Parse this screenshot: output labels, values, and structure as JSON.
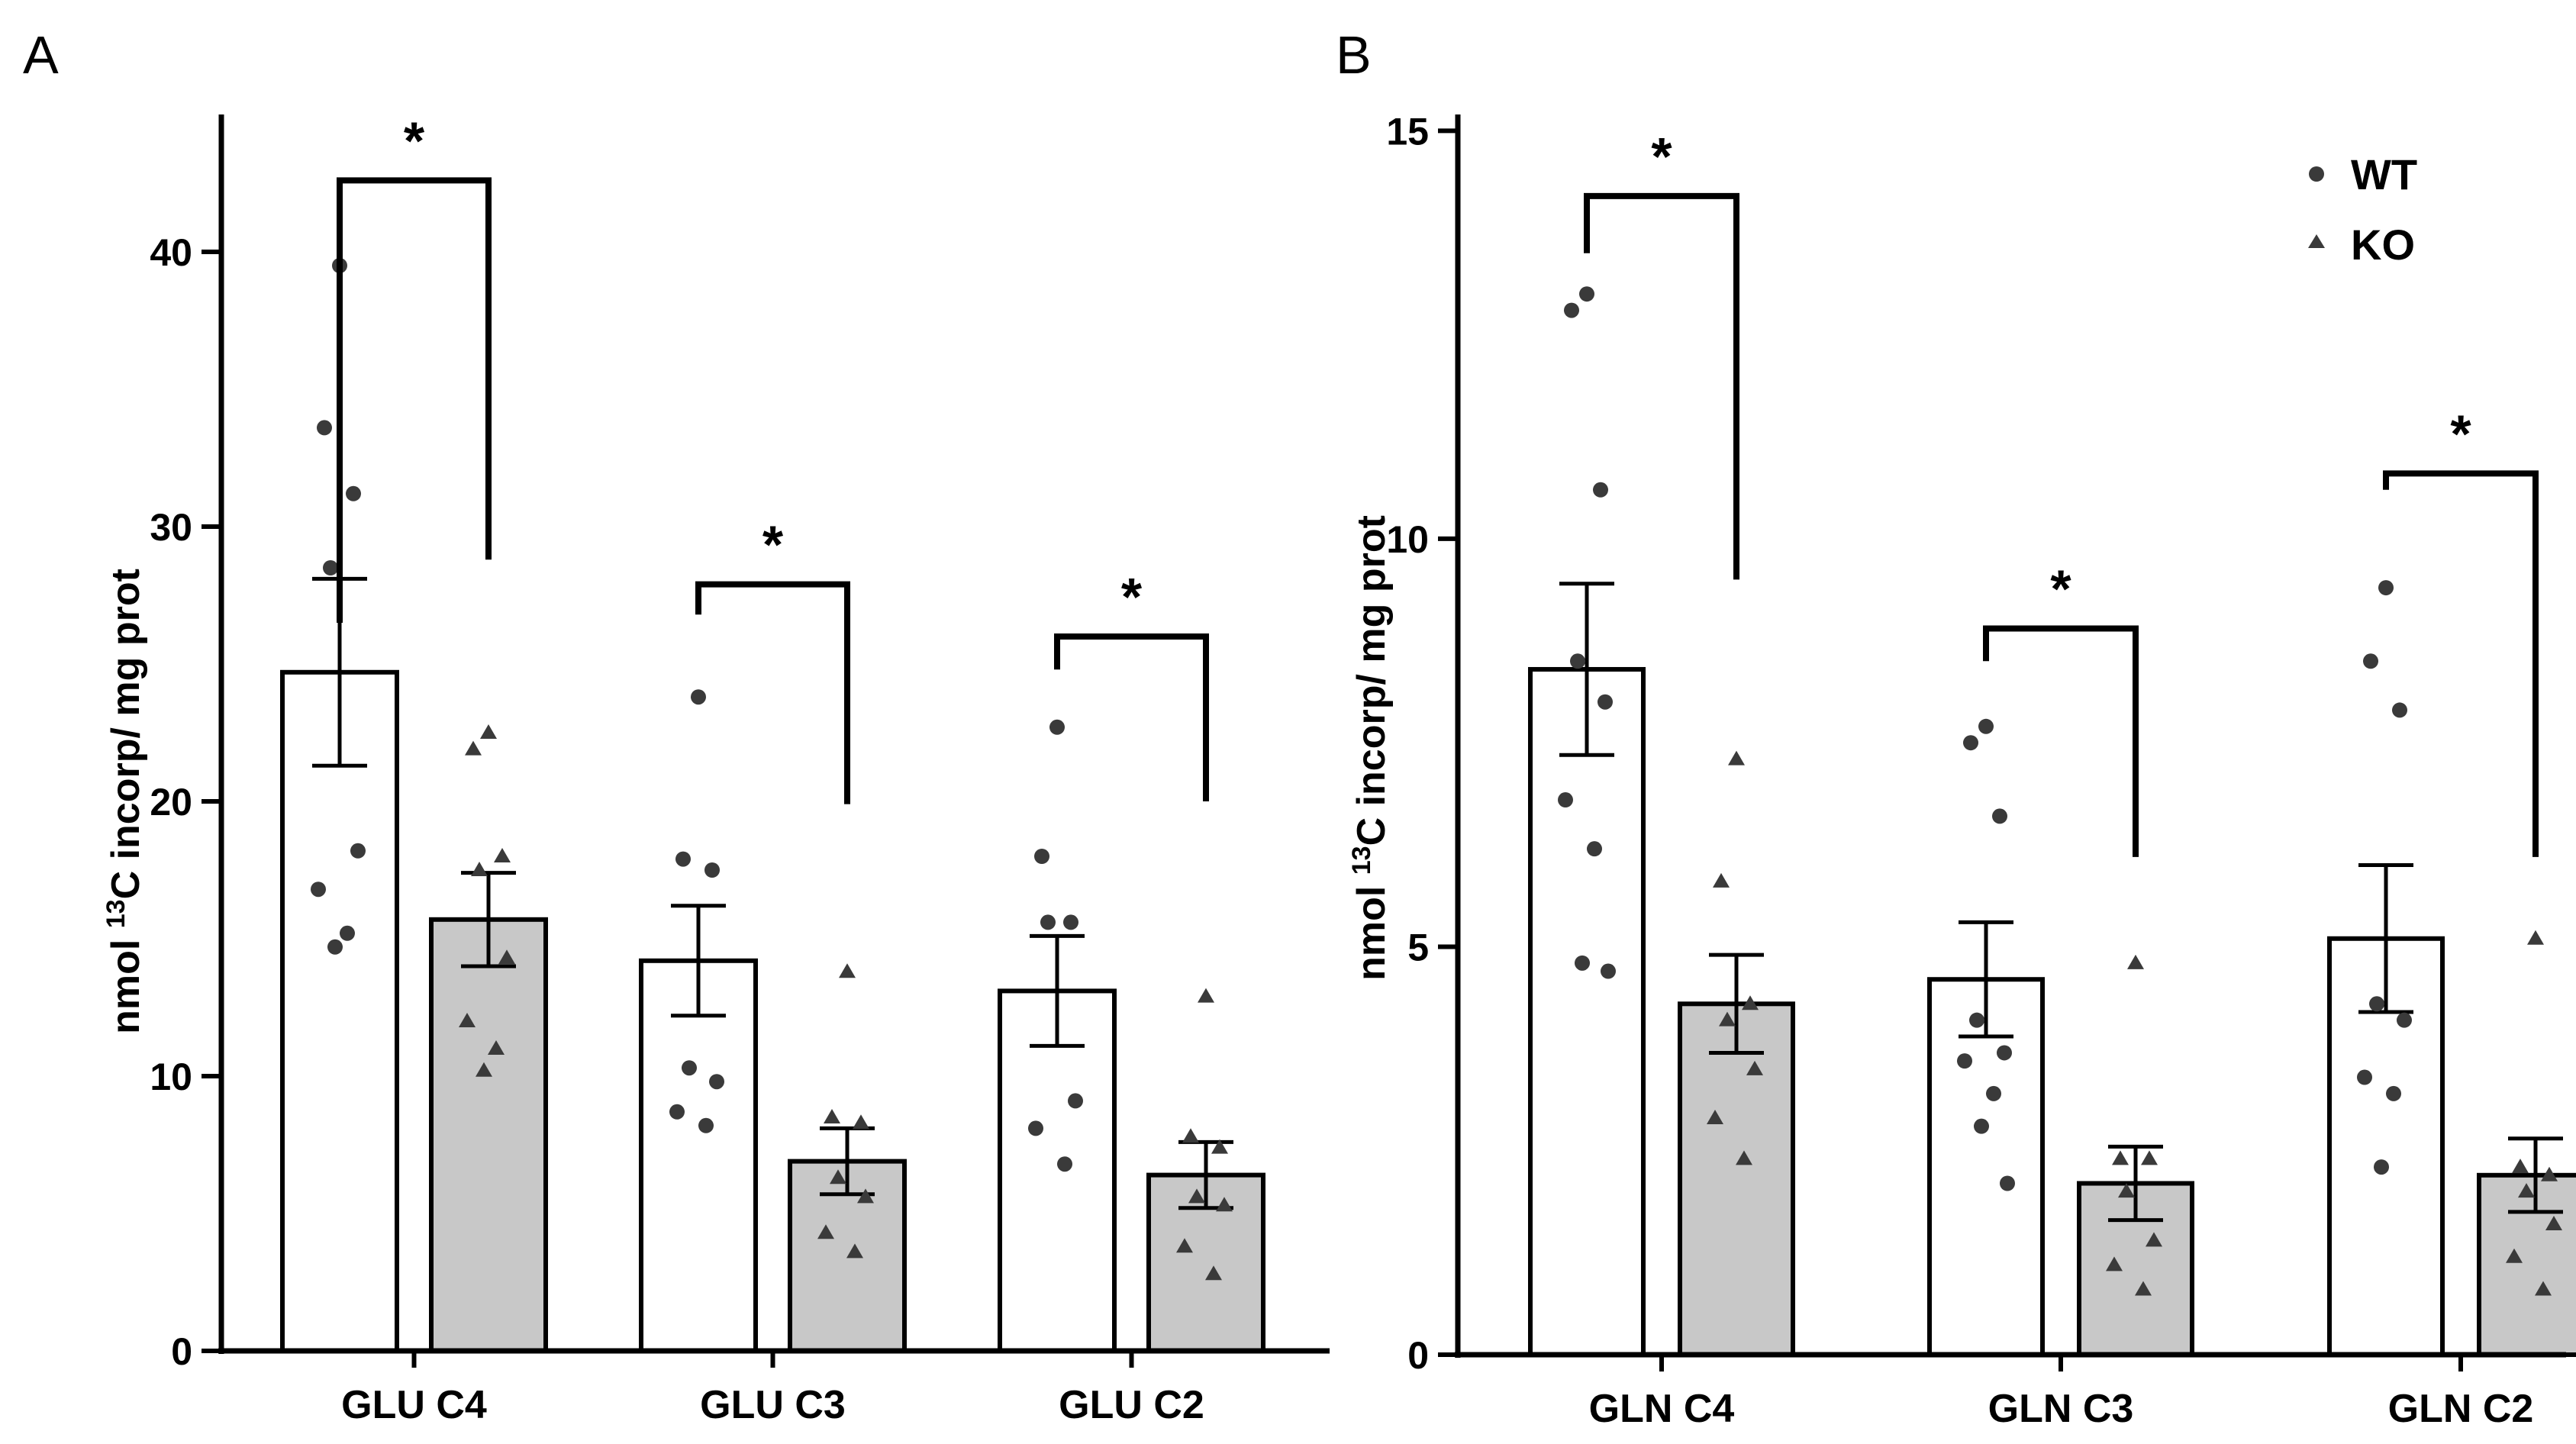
{
  "chart_data": [
    {
      "panel_label": "A",
      "type": "bar",
      "categories": [
        "GLU C4",
        "GLU C3",
        "GLU C2"
      ],
      "ylabel_prefix": "nmol ",
      "ylabel_sup": "13",
      "ylabel_suffix": "C incorp/ mg prot",
      "ylim": [
        0,
        45
      ],
      "yticks": [
        0,
        10,
        20,
        30,
        40
      ],
      "series": [
        {
          "name": "WT",
          "values": [
            24.7,
            14.2,
            13.1
          ],
          "sem": [
            3.4,
            2.0,
            2.0
          ],
          "points": [
            [
              39.5,
              33.6,
              31.2,
              28.5,
              18.2,
              16.8,
              15.2,
              14.7
            ],
            [
              23.8,
              17.9,
              17.5,
              10.3,
              9.8,
              8.7,
              8.2
            ],
            [
              22.7,
              18.0,
              15.6,
              15.6,
              9.1,
              8.1,
              6.8
            ]
          ]
        },
        {
          "name": "KO",
          "values": [
            15.7,
            6.9,
            6.4
          ],
          "sem": [
            1.7,
            1.2,
            1.2
          ],
          "points": [
            [
              22.5,
              21.9,
              18.0,
              17.5,
              14.3,
              12.0,
              11.0,
              10.2
            ],
            [
              13.8,
              8.5,
              8.3,
              6.3,
              5.6,
              4.3,
              3.6
            ],
            [
              12.9,
              7.8,
              7.4,
              5.6,
              5.3,
              3.8,
              2.8
            ]
          ]
        }
      ],
      "significance": [
        {
          "label": "*",
          "left_end": 26.5,
          "right_end": 28.8,
          "top": 42.6
        },
        {
          "label": "*",
          "left_end": 26.8,
          "right_end": 19.9,
          "top": 27.9
        },
        {
          "label": "*",
          "left_end": 24.8,
          "right_end": 20.0,
          "top": 26.0
        }
      ]
    },
    {
      "panel_label": "B",
      "type": "bar",
      "categories": [
        "GLN C4",
        "GLN C3",
        "GLN C2"
      ],
      "ylabel_prefix": "nmol ",
      "ylabel_sup": "13",
      "ylabel_suffix": "C incorp/ mg prot",
      "ylim": [
        0,
        15.2
      ],
      "yticks": [
        0,
        5,
        10,
        15
      ],
      "legend": {
        "position": "top-right",
        "entries": [
          "WT",
          "KO"
        ]
      },
      "series": [
        {
          "name": "WT",
          "values": [
            8.4,
            4.6,
            5.1
          ],
          "sem": [
            1.05,
            0.7,
            0.9
          ],
          "points": [
            [
              13.0,
              12.8,
              10.6,
              8.5,
              8.0,
              6.8,
              6.2,
              4.8,
              4.7
            ],
            [
              7.7,
              7.5,
              6.6,
              4.1,
              3.7,
              3.6,
              3.2,
              2.8,
              2.1
            ],
            [
              9.4,
              8.5,
              7.9,
              4.3,
              4.1,
              3.4,
              3.2,
              2.3
            ]
          ]
        },
        {
          "name": "KO",
          "values": [
            4.3,
            2.1,
            2.2
          ],
          "sem": [
            0.6,
            0.45,
            0.45
          ],
          "points": [
            [
              7.3,
              5.8,
              4.3,
              4.1,
              3.5,
              2.9,
              2.4
            ],
            [
              4.8,
              2.4,
              2.4,
              2.0,
              1.4,
              1.1,
              0.8
            ],
            [
              5.1,
              2.3,
              2.2,
              2.0,
              1.6,
              1.2,
              0.8
            ]
          ]
        }
      ],
      "significance": [
        {
          "label": "*",
          "left_end": 13.5,
          "right_end": 9.5,
          "top": 14.2
        },
        {
          "label": "*",
          "left_end": 8.5,
          "right_end": 6.1,
          "top": 8.9
        },
        {
          "label": "*",
          "left_end": 10.6,
          "right_end": 6.1,
          "top": 10.8
        }
      ]
    }
  ]
}
